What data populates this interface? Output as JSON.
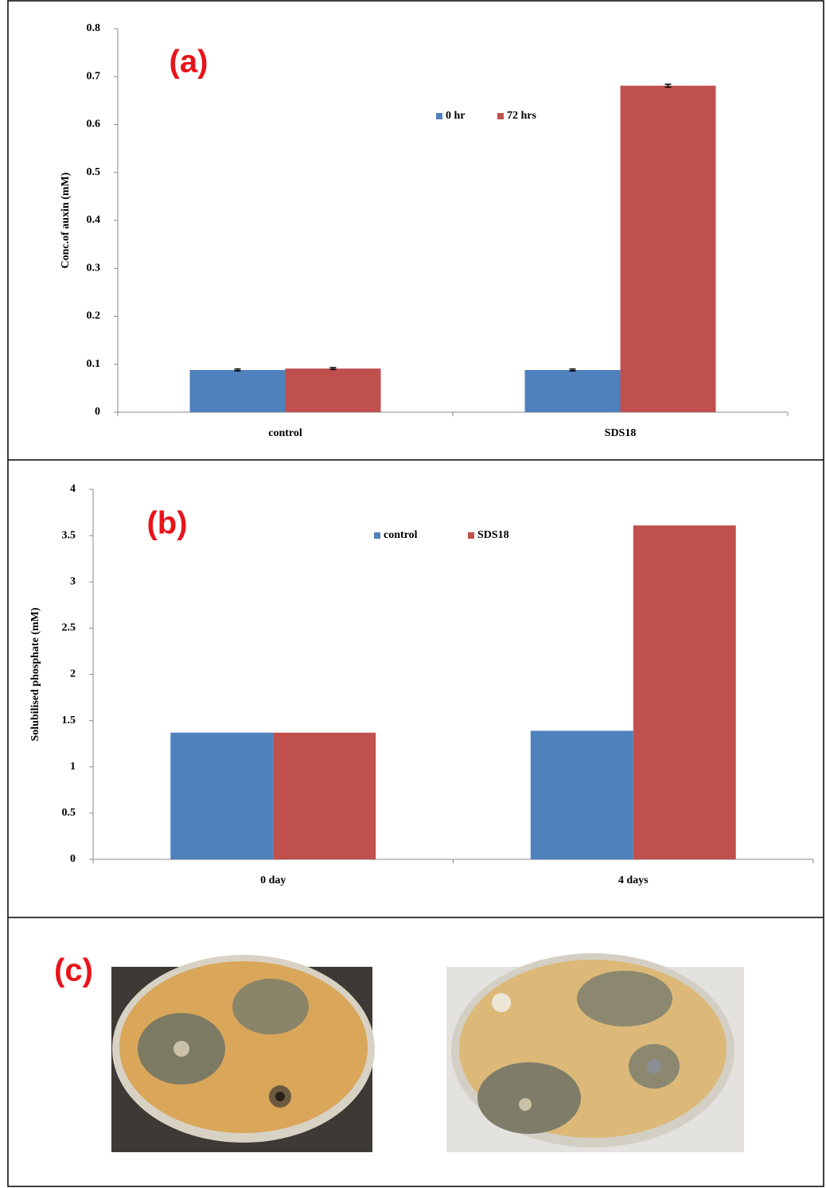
{
  "chart_data": [
    {
      "type": "bar",
      "title": "(a)",
      "y_label": "Conc.of auxin (mM)",
      "categories": [
        "control",
        "SDS18"
      ],
      "series": [
        {
          "name": "0 hr",
          "color": "#4f81bd",
          "values": [
            0.088,
            0.088
          ],
          "errors": [
            0.002,
            0.002
          ]
        },
        {
          "name": "72 hrs",
          "color": "#c0504d",
          "values": [
            0.091,
            0.681
          ],
          "errors": [
            0.002,
            0.003
          ]
        }
      ],
      "ylim": [
        0,
        0.8
      ],
      "yticks": [
        0,
        0.1,
        0.2,
        0.3,
        0.4,
        0.5,
        0.6,
        0.7,
        0.8
      ],
      "grid": false
    },
    {
      "type": "bar",
      "title": "(b)",
      "y_label": "Solubilised phosphate (mM)",
      "categories": [
        "0 day",
        "4 days"
      ],
      "series": [
        {
          "name": "control",
          "color": "#4f81bd",
          "values": [
            1.37,
            1.39
          ]
        },
        {
          "name": "SDS18",
          "color": "#c0504d",
          "values": [
            1.37,
            3.61
          ]
        }
      ],
      "ylim": [
        0,
        4
      ],
      "yticks": [
        0,
        0.5,
        1,
        1.5,
        2,
        2.5,
        3,
        3.5,
        4
      ],
      "grid": false
    }
  ],
  "panel_c": {
    "label": "(c)"
  }
}
